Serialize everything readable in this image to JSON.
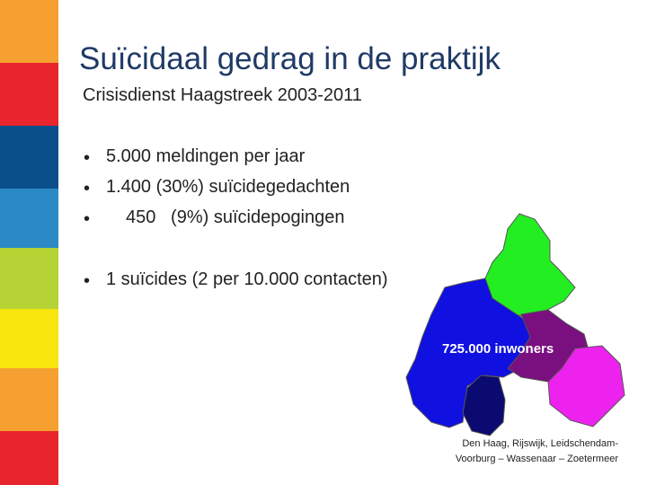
{
  "title": "Suïcidaal gedrag in de praktijk",
  "subtitle": "Crisisdienst Haagstreek 2003-2011",
  "bullets": [
    "5.000 meldingen per jaar",
    "1.400 (30%) suïcidegedachten",
    "450   (9%) suïcidepogingen"
  ],
  "bullets2": [
    "1 suïcides (2 per 10.000 contacten)"
  ],
  "map": {
    "label": "725.000 inwoners",
    "caption": [
      "Den Haag, Rijswijk, Leidschendam-",
      "Voorburg – Wassenaar – Zoetermeer"
    ]
  }
}
